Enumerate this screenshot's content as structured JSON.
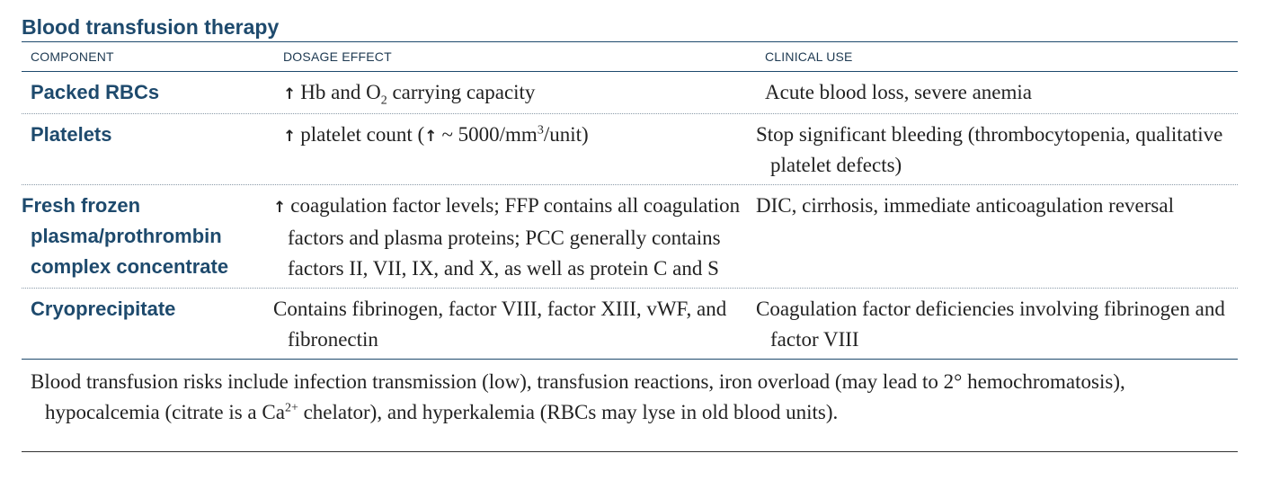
{
  "title": "Blood transfusion therapy",
  "headers": {
    "component": "COMPONENT",
    "dosage_effect": "DOSAGE EFFECT",
    "clinical_use": "CLINICAL USE"
  },
  "rows": [
    {
      "component": "Packed RBCs",
      "dosage_effect": {
        "arrow": "↑",
        "pre": "Hb and O",
        "sub": "2",
        "post": " carrying capacity"
      },
      "clinical_use": "Acute blood loss, severe anemia"
    },
    {
      "component": "Platelets",
      "dosage_effect": {
        "arrow": "↑",
        "pre": "platelet count (",
        "arrow2": "↑",
        "mid": "~ 5000/mm",
        "sup": "3",
        "post": "/unit)"
      },
      "clinical_use": "Stop significant bleeding (thrombocytopenia, qualitative platelet defects)"
    },
    {
      "component": "Fresh frozen plasma/prothrombin complex concentrate",
      "dosage_effect": {
        "arrow": "↑",
        "text": "coagulation factor levels; FFP contains all coagulation factors and plasma proteins; PCC generally contains factors II, VII, IX, and X, as well as protein C and S"
      },
      "clinical_use": "DIC, cirrhosis, immediate anticoagulation reversal"
    },
    {
      "component": "Cryoprecipitate",
      "dosage_effect": {
        "text": "Contains fibrinogen, factor VIII, factor XIII, vWF, and fibronectin"
      },
      "clinical_use": "Coagulation factor deficiencies involving fibrinogen and factor VIII"
    }
  ],
  "note": {
    "pre": "Blood transfusion risks include infection transmission (low), transfusion reactions, iron overload (may lead to 2° hemochromatosis), hypocalcemia (citrate is a Ca",
    "sup": "2+",
    "post": " chelator), and hyperkalemia (RBCs may lyse in old blood units)."
  }
}
